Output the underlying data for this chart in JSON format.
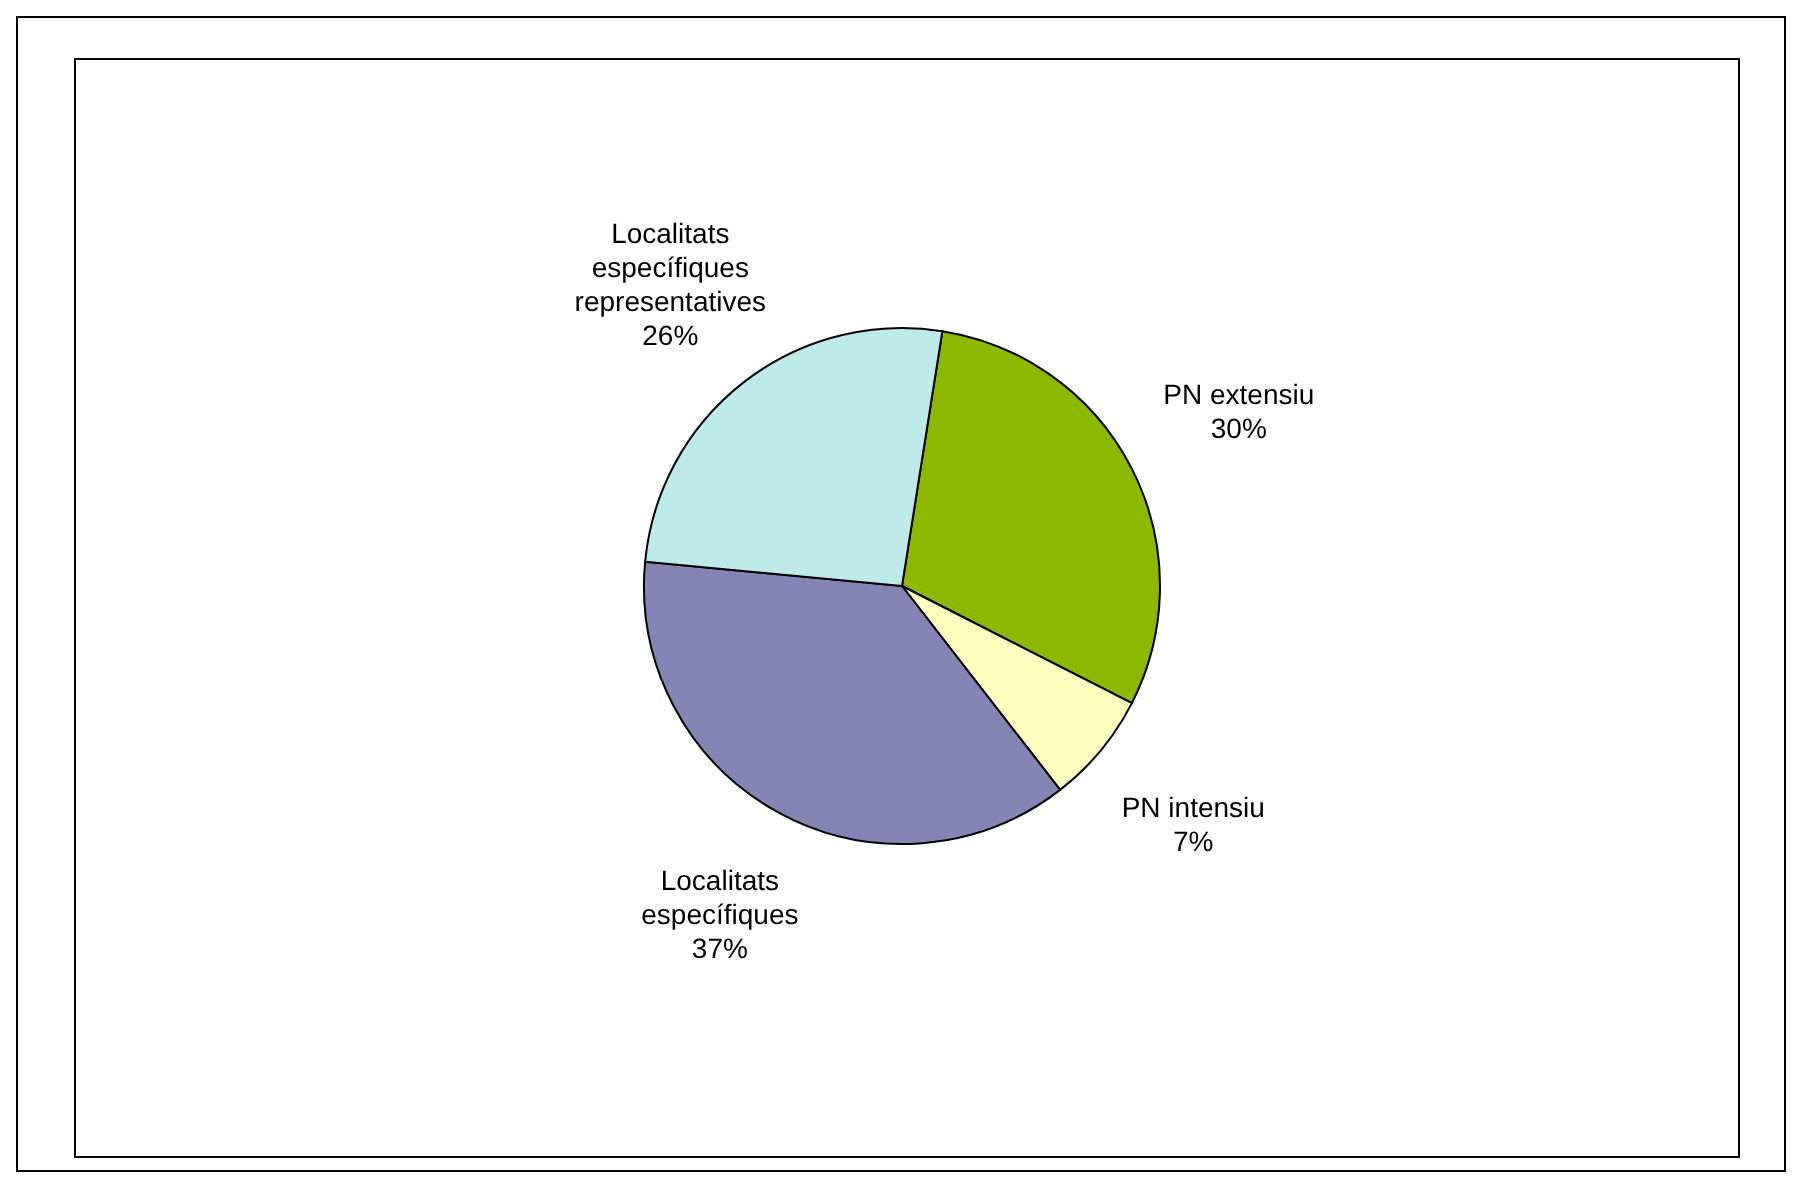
{
  "chart_data": {
    "type": "pie",
    "categories": [
      "PN extensiu",
      "PN intensiu",
      "Localitats específiques",
      "Localitats específiques representatives"
    ],
    "values": [
      30,
      7,
      37,
      26
    ],
    "colors": [
      "#8cb800",
      "#ffffc0",
      "#8585b5",
      "#bfeaea"
    ],
    "value_labels": [
      "30%",
      "7%",
      "37%",
      "26%"
    ]
  }
}
